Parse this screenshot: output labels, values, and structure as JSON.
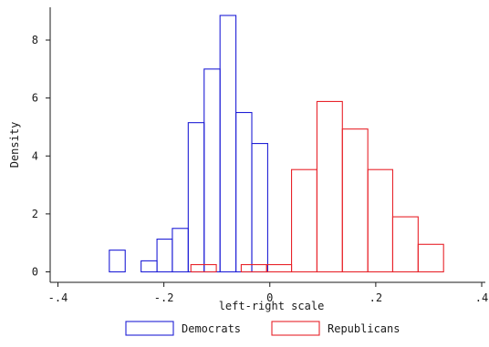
{
  "chart_data": {
    "type": "bar",
    "subtype": "overlaid-histogram",
    "xlabel": "left-right scale",
    "ylabel": "Density",
    "xlim": [
      -0.4,
      0.4
    ],
    "ylim": [
      0,
      9
    ],
    "x_ticks": [
      -0.4,
      -0.2,
      0,
      0.2,
      0.4
    ],
    "x_tick_labels": [
      "-.4",
      "-.2",
      "0",
      ".2",
      ".4"
    ],
    "y_ticks": [
      0,
      2,
      4,
      6,
      8
    ],
    "y_tick_labels": [
      "0",
      "2",
      "4",
      "6",
      "8"
    ],
    "grid": false,
    "legend_position": "bottom",
    "series": [
      {
        "name": "Democrats",
        "color": "#1f1fd6",
        "bins": [
          {
            "x0": -0.303,
            "x1": -0.273,
            "value": 0.75
          },
          {
            "x0": -0.243,
            "x1": -0.213,
            "value": 0.38
          },
          {
            "x0": -0.213,
            "x1": -0.184,
            "value": 1.13
          },
          {
            "x0": -0.184,
            "x1": -0.154,
            "value": 1.5
          },
          {
            "x0": -0.154,
            "x1": -0.124,
            "value": 5.15
          },
          {
            "x0": -0.124,
            "x1": -0.094,
            "value": 7.0
          },
          {
            "x0": -0.094,
            "x1": -0.064,
            "value": 8.85
          },
          {
            "x0": -0.064,
            "x1": -0.034,
            "value": 5.5
          },
          {
            "x0": -0.034,
            "x1": -0.004,
            "value": 4.43
          }
        ]
      },
      {
        "name": "Republicans",
        "color": "#e8232a",
        "bins": [
          {
            "x0": -0.149,
            "x1": -0.101,
            "value": 0.25
          },
          {
            "x0": -0.054,
            "x1": -0.006,
            "value": 0.25
          },
          {
            "x0": -0.006,
            "x1": 0.041,
            "value": 0.25
          },
          {
            "x0": 0.041,
            "x1": 0.089,
            "value": 3.53
          },
          {
            "x0": 0.089,
            "x1": 0.137,
            "value": 5.88
          },
          {
            "x0": 0.137,
            "x1": 0.185,
            "value": 4.93
          },
          {
            "x0": 0.185,
            "x1": 0.232,
            "value": 3.53
          },
          {
            "x0": 0.232,
            "x1": 0.28,
            "value": 1.9
          },
          {
            "x0": 0.28,
            "x1": 0.328,
            "value": 0.95
          }
        ]
      }
    ]
  }
}
